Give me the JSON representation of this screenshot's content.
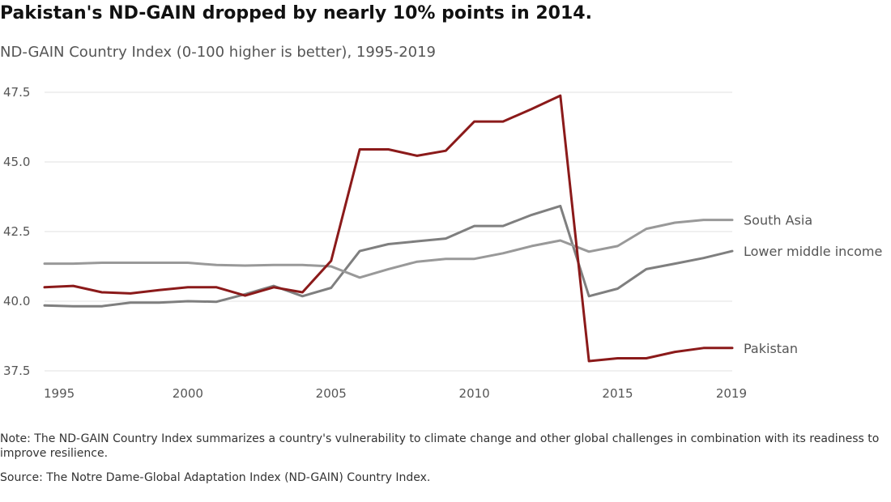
{
  "title": "Pakistan's ND-GAIN dropped by nearly 10% points in 2014.",
  "subtitle": "ND-GAIN Country Index (0-100 higher is better), 1995-2019",
  "note": "Note: The ND-GAIN Country Index summarizes a country's vulnerability to climate change and other global challenges in combination with its readiness to improve resilience.",
  "source": "Source: The Notre Dame-Global Adaptation Index (ND-GAIN) Country Index.",
  "chart_data": {
    "type": "line",
    "title": "Pakistan's ND-GAIN dropped by nearly 10% points in 2014.",
    "subtitle": "ND-GAIN Country Index (0-100 higher is better), 1995-2019",
    "xlabel": "",
    "ylabel": "",
    "xlim": [
      1995,
      2019
    ],
    "ylim": [
      37.5,
      47.5
    ],
    "x_ticks": [
      "1995",
      "2000",
      "2005",
      "2010",
      "2015",
      "2019"
    ],
    "y_ticks": [
      "37.5",
      "40.0",
      "42.5",
      "45.0",
      "47.5"
    ],
    "grid": "horizontal",
    "legend": "direct labels at line ends (right)",
    "x": [
      1995,
      1996,
      1997,
      1998,
      1999,
      2000,
      2001,
      2002,
      2003,
      2004,
      2005,
      2006,
      2007,
      2008,
      2009,
      2010,
      2011,
      2012,
      2013,
      2014,
      2015,
      2016,
      2017,
      2018,
      2019
    ],
    "series": [
      {
        "name": "Lower middle income",
        "color": "#7f7f7f",
        "values": [
          39.85,
          39.82,
          39.82,
          39.95,
          39.95,
          40.0,
          39.98,
          40.25,
          40.55,
          40.18,
          40.48,
          41.8,
          42.05,
          42.15,
          42.25,
          42.7,
          42.7,
          43.1,
          43.42,
          40.18,
          40.45,
          41.15,
          41.35,
          41.55,
          41.8
        ]
      },
      {
        "name": "South Asia",
        "color": "#999999",
        "values": [
          41.35,
          41.35,
          41.38,
          41.38,
          41.38,
          41.38,
          41.3,
          41.28,
          41.3,
          41.3,
          41.25,
          40.85,
          41.15,
          41.42,
          41.52,
          41.52,
          41.72,
          41.98,
          42.18,
          41.78,
          41.98,
          42.6,
          42.82,
          42.92,
          42.92
        ]
      },
      {
        "name": "Pakistan",
        "color": "#8b1a1a",
        "values": [
          40.5,
          40.55,
          40.32,
          40.28,
          40.4,
          40.5,
          40.5,
          40.2,
          40.5,
          40.32,
          41.45,
          45.45,
          45.45,
          45.22,
          45.4,
          46.45,
          46.45,
          46.9,
          47.38,
          37.85,
          37.95,
          37.95,
          38.18,
          38.32,
          38.32
        ]
      }
    ]
  }
}
